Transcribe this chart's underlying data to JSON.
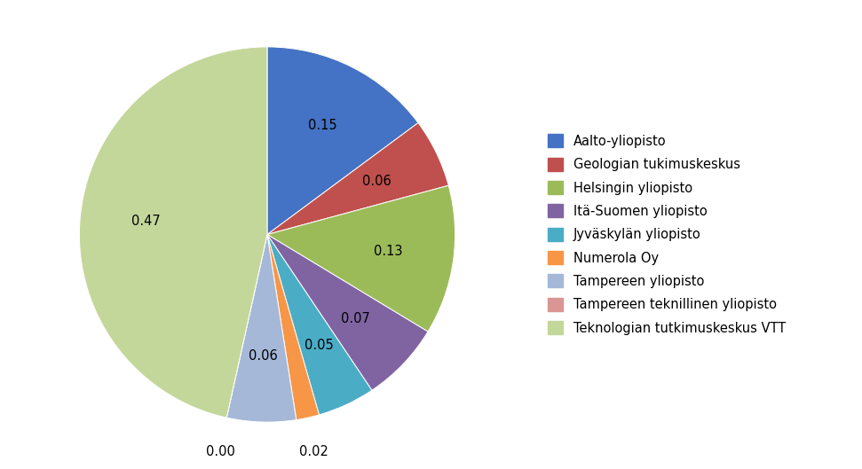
{
  "labels": [
    "Aalto-yliopisto",
    "Geologian tukimuskeskus",
    "Helsingin yliopisto",
    "Itä-Suomen yliopisto",
    "Jyväskylän yliopisto",
    "Numerola Oy",
    "Tampereen yliopisto",
    "Tampereen teknillinen yliopisto",
    "Teknologian tutkimuskeskus VTT"
  ],
  "values": [
    0.15,
    0.06,
    0.13,
    0.07,
    0.05,
    0.02,
    0.06,
    0.0,
    0.47
  ],
  "colors": [
    "#4472C4",
    "#C0504D",
    "#9BBB59",
    "#8064A2",
    "#4BACC6",
    "#F79646",
    "#A5B8D8",
    "#D99694",
    "#C4D79B"
  ],
  "label_values": [
    "0.15",
    "0.06",
    "0.13",
    "0.07",
    "0.05",
    "0.02",
    "0.06",
    "0.00",
    "0.47"
  ],
  "background_color": "#FFFFFF",
  "legend_fontsize": 10.5,
  "label_fontsize": 10.5
}
